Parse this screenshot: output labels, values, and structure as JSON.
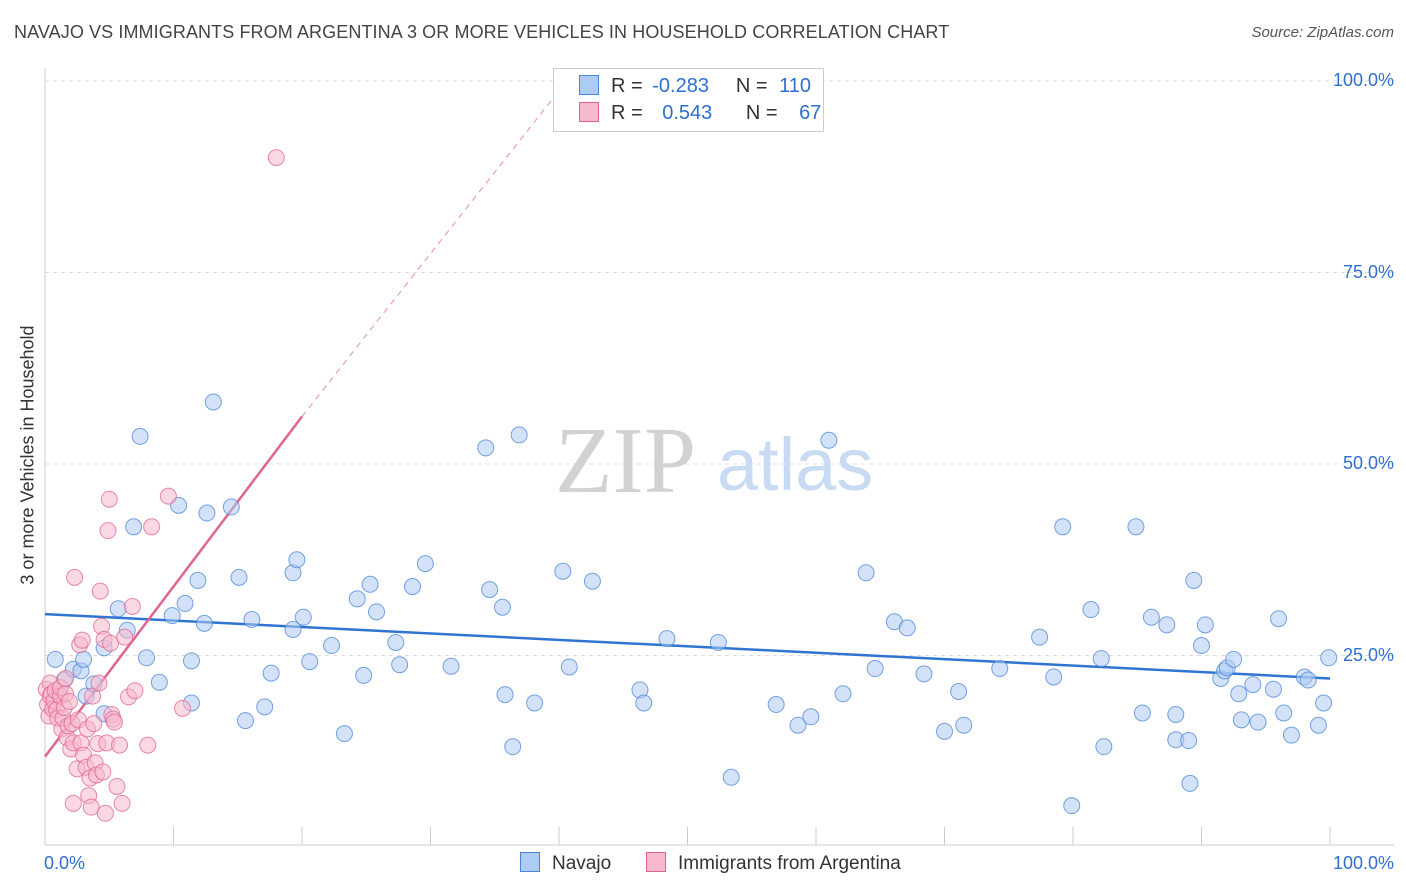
{
  "title": "NAVAJO VS IMMIGRANTS FROM ARGENTINA 3 OR MORE VEHICLES IN HOUSEHOLD CORRELATION CHART",
  "source": "Source: ZipAtlas.com",
  "watermark": {
    "zip": "ZIP",
    "atlas": "atlas"
  },
  "legend": {
    "rows": [
      {
        "r_label": "R =",
        "r_value": "-0.283",
        "n_label": "N =",
        "n_value": "110",
        "color": "#aecbf2"
      },
      {
        "r_label": "R =",
        "r_value": "0.543",
        "n_label": "N =",
        "n_value": "67",
        "color": "#f7b8cb"
      }
    ]
  },
  "bottom_legend": [
    "Navajo",
    "Immigrants from Argentina"
  ],
  "chart_data": {
    "type": "scatter",
    "title": "NAVAJO VS IMMIGRANTS FROM ARGENTINA 3 OR MORE VEHICLES IN HOUSEHOLD CORRELATION CHART",
    "xlabel": "",
    "ylabel": "3 or more Vehicles in Household",
    "xlim": [
      0,
      100
    ],
    "ylim": [
      0,
      100
    ],
    "x_tick_labels": [
      "0.0%",
      "100.0%"
    ],
    "y_tick_labels": [
      "25.0%",
      "50.0%",
      "75.0%",
      "100.0%"
    ],
    "y_ticks": [
      25,
      50,
      75,
      100
    ],
    "grid": true,
    "series": [
      {
        "name": "Navajo",
        "color": "#4a86d8",
        "fill": "#aecbf2",
        "trend": {
          "x": [
            0,
            100
          ],
          "y": [
            30.4,
            22.0
          ]
        },
        "points": [
          [
            0.8,
            24.5
          ],
          [
            1.5,
            21.8
          ],
          [
            2.2,
            23.2
          ],
          [
            2.8,
            23.0
          ],
          [
            3.0,
            24.5
          ],
          [
            3.2,
            19.7
          ],
          [
            3.8,
            21.3
          ],
          [
            4.6,
            17.4
          ],
          [
            4.6,
            26.0
          ],
          [
            5.7,
            31.1
          ],
          [
            6.4,
            28.3
          ],
          [
            6.9,
            41.8
          ],
          [
            7.4,
            53.6
          ],
          [
            7.9,
            24.7
          ],
          [
            8.9,
            21.5
          ],
          [
            9.9,
            30.2
          ],
          [
            10.4,
            44.6
          ],
          [
            10.9,
            31.8
          ],
          [
            11.4,
            24.3
          ],
          [
            11.4,
            18.8
          ],
          [
            11.9,
            34.8
          ],
          [
            12.4,
            29.2
          ],
          [
            12.6,
            43.6
          ],
          [
            13.1,
            58.1
          ],
          [
            14.5,
            44.4
          ],
          [
            15.1,
            35.2
          ],
          [
            15.6,
            16.5
          ],
          [
            16.1,
            29.7
          ],
          [
            17.1,
            18.3
          ],
          [
            17.6,
            22.7
          ],
          [
            19.3,
            28.4
          ],
          [
            19.3,
            35.8
          ],
          [
            19.6,
            37.5
          ],
          [
            20.1,
            30.0
          ],
          [
            20.6,
            24.2
          ],
          [
            22.3,
            26.3
          ],
          [
            23.3,
            14.8
          ],
          [
            24.3,
            32.4
          ],
          [
            24.8,
            22.4
          ],
          [
            25.3,
            34.3
          ],
          [
            25.8,
            30.7
          ],
          [
            27.3,
            26.7
          ],
          [
            27.6,
            23.8
          ],
          [
            28.6,
            34.0
          ],
          [
            29.6,
            37.0
          ],
          [
            31.6,
            23.6
          ],
          [
            34.3,
            52.1
          ],
          [
            34.6,
            33.6
          ],
          [
            35.6,
            31.3
          ],
          [
            35.8,
            19.9
          ],
          [
            36.4,
            13.1
          ],
          [
            36.9,
            53.8
          ],
          [
            38.1,
            18.8
          ],
          [
            40.3,
            36.0
          ],
          [
            42.6,
            34.7
          ],
          [
            46.3,
            20.5
          ],
          [
            46.6,
            18.8
          ],
          [
            52.4,
            26.7
          ],
          [
            53.4,
            9.1
          ],
          [
            56.9,
            18.6
          ],
          [
            58.6,
            15.9
          ],
          [
            61.0,
            53.1
          ],
          [
            62.1,
            20.0
          ],
          [
            63.9,
            35.8
          ],
          [
            64.6,
            23.3
          ],
          [
            66.1,
            29.4
          ],
          [
            67.1,
            28.6
          ],
          [
            68.4,
            22.6
          ],
          [
            70.0,
            15.1
          ],
          [
            71.1,
            20.3
          ],
          [
            71.5,
            15.9
          ],
          [
            74.3,
            23.3
          ],
          [
            77.4,
            27.4
          ],
          [
            78.5,
            22.2
          ],
          [
            79.2,
            41.8
          ],
          [
            79.9,
            5.4
          ],
          [
            81.4,
            31.0
          ],
          [
            82.2,
            24.6
          ],
          [
            82.4,
            13.1
          ],
          [
            84.9,
            41.8
          ],
          [
            85.4,
            17.5
          ],
          [
            86.1,
            30.0
          ],
          [
            87.3,
            29.0
          ],
          [
            88.0,
            17.3
          ],
          [
            88.0,
            14.0
          ],
          [
            89.0,
            13.9
          ],
          [
            89.1,
            8.3
          ],
          [
            89.4,
            34.8
          ],
          [
            90.0,
            26.3
          ],
          [
            90.3,
            29.0
          ],
          [
            91.5,
            22.0
          ],
          [
            91.8,
            23.0
          ],
          [
            92.0,
            23.4
          ],
          [
            92.5,
            24.5
          ],
          [
            92.9,
            20.0
          ],
          [
            93.1,
            16.6
          ],
          [
            94.0,
            21.2
          ],
          [
            94.4,
            16.3
          ],
          [
            95.6,
            20.6
          ],
          [
            96.0,
            29.8
          ],
          [
            96.4,
            17.5
          ],
          [
            97.0,
            14.6
          ],
          [
            98.0,
            22.2
          ],
          [
            98.3,
            21.8
          ],
          [
            99.1,
            15.9
          ],
          [
            99.5,
            18.8
          ],
          [
            99.9,
            24.7
          ],
          [
            40.8,
            23.5
          ],
          [
            59.6,
            17.0
          ],
          [
            48.4,
            27.2
          ]
        ]
      },
      {
        "name": "Immigrants from Argentina",
        "color": "#e0648f",
        "fill": "#f7b8cb",
        "trend": {
          "x": [
            0,
            20
          ],
          "y": [
            11.8,
            56.2
          ]
        },
        "trend_dashed": {
          "x": [
            20,
            40.6
          ],
          "y": [
            56.2,
            100
          ]
        },
        "points": [
          [
            0.1,
            20.6
          ],
          [
            0.2,
            18.6
          ],
          [
            0.3,
            17.1
          ],
          [
            0.4,
            19.7
          ],
          [
            0.4,
            21.4
          ],
          [
            0.5,
            20.0
          ],
          [
            0.6,
            18.0
          ],
          [
            0.7,
            19.1
          ],
          [
            0.8,
            20.4
          ],
          [
            0.9,
            17.9
          ],
          [
            1.0,
            16.8
          ],
          [
            1.2,
            19.7
          ],
          [
            1.2,
            20.8
          ],
          [
            1.3,
            15.4
          ],
          [
            1.4,
            16.8
          ],
          [
            1.5,
            18.2
          ],
          [
            1.6,
            20.0
          ],
          [
            1.6,
            22.0
          ],
          [
            1.7,
            14.3
          ],
          [
            1.8,
            15.8
          ],
          [
            1.9,
            19.0
          ],
          [
            2.0,
            12.8
          ],
          [
            2.1,
            16.1
          ],
          [
            2.2,
            13.6
          ],
          [
            2.2,
            5.7
          ],
          [
            2.3,
            35.2
          ],
          [
            2.5,
            10.2
          ],
          [
            2.6,
            16.6
          ],
          [
            2.7,
            26.4
          ],
          [
            2.8,
            13.6
          ],
          [
            2.9,
            27.0
          ],
          [
            3.0,
            12.0
          ],
          [
            3.2,
            10.4
          ],
          [
            3.3,
            15.4
          ],
          [
            3.4,
            6.7
          ],
          [
            3.5,
            9.0
          ],
          [
            3.6,
            5.2
          ],
          [
            3.7,
            19.7
          ],
          [
            3.8,
            16.1
          ],
          [
            3.9,
            11.0
          ],
          [
            4.0,
            9.4
          ],
          [
            4.1,
            13.5
          ],
          [
            4.2,
            21.4
          ],
          [
            4.3,
            33.4
          ],
          [
            4.4,
            28.8
          ],
          [
            4.5,
            9.8
          ],
          [
            4.6,
            27.1
          ],
          [
            4.7,
            4.4
          ],
          [
            4.8,
            13.6
          ],
          [
            4.9,
            41.3
          ],
          [
            5.0,
            45.4
          ],
          [
            5.1,
            26.6
          ],
          [
            5.2,
            17.3
          ],
          [
            5.3,
            16.7
          ],
          [
            5.4,
            16.3
          ],
          [
            5.6,
            7.9
          ],
          [
            5.8,
            13.3
          ],
          [
            6.0,
            5.7
          ],
          [
            6.2,
            27.4
          ],
          [
            6.5,
            19.6
          ],
          [
            6.8,
            31.4
          ],
          [
            7.0,
            20.4
          ],
          [
            8.0,
            13.3
          ],
          [
            8.3,
            41.8
          ],
          [
            9.6,
            45.8
          ],
          [
            10.7,
            18.1
          ],
          [
            18.0,
            90.0
          ]
        ]
      }
    ]
  }
}
